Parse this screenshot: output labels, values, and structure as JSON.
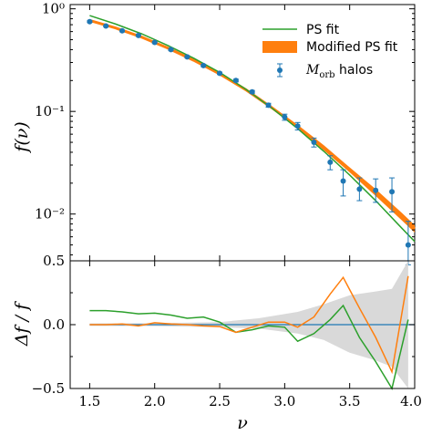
{
  "chart_data": [
    {
      "type": "line",
      "panel": "top",
      "y_scale": "log",
      "xlim": [
        1.35,
        4.0
      ],
      "ylim": [
        0.0035,
        1.1
      ],
      "ylabel": "f(ν)",
      "y_ticks": [
        1,
        0.1,
        0.01
      ],
      "y_tick_labels": [
        "10⁰",
        "10⁻¹",
        "10⁻²"
      ],
      "legend_position": "top-right",
      "legend": {
        "ps": "PS fit",
        "mod": "Modified PS fit",
        "halos_main": "M",
        "halos_sub": "orb",
        "halos_tail": " halos"
      },
      "colors": {
        "ps": "#2ca02c",
        "mod": "#ff7f0e",
        "halos": "#1f77b4"
      },
      "series": [
        {
          "name": "PS fit",
          "x": [
            1.5,
            1.7,
            1.9,
            2.1,
            2.3,
            2.5,
            2.7,
            2.9,
            3.1,
            3.3,
            3.5,
            3.7,
            3.9,
            4.0
          ],
          "values": [
            0.86,
            0.71,
            0.57,
            0.44,
            0.33,
            0.24,
            0.165,
            0.108,
            0.068,
            0.041,
            0.024,
            0.0135,
            0.0073,
            0.0054
          ]
        },
        {
          "name": "Modified PS fit",
          "x": [
            1.5,
            1.7,
            1.9,
            2.1,
            2.3,
            2.5,
            2.7,
            2.9,
            3.1,
            3.3,
            3.5,
            3.7,
            3.9,
            4.0
          ],
          "values": [
            0.77,
            0.65,
            0.53,
            0.415,
            0.315,
            0.232,
            0.163,
            0.109,
            0.071,
            0.044,
            0.027,
            0.0163,
            0.0095,
            0.0072
          ],
          "band_low": [
            0.76,
            0.64,
            0.52,
            0.41,
            0.31,
            0.228,
            0.16,
            0.106,
            0.068,
            0.042,
            0.0255,
            0.015,
            0.0087,
            0.0066
          ],
          "band_high": [
            0.78,
            0.66,
            0.54,
            0.42,
            0.32,
            0.236,
            0.167,
            0.112,
            0.074,
            0.047,
            0.0285,
            0.0175,
            0.0103,
            0.0078
          ]
        },
        {
          "name": "M_orb halos",
          "x": [
            1.5,
            1.625,
            1.75,
            1.875,
            2.0,
            2.125,
            2.25,
            2.375,
            2.5,
            2.625,
            2.75,
            2.875,
            3.0,
            3.1,
            3.225,
            3.35,
            3.45,
            3.575,
            3.7,
            3.825,
            3.95
          ],
          "values": [
            0.75,
            0.68,
            0.61,
            0.55,
            0.47,
            0.4,
            0.34,
            0.28,
            0.235,
            0.2,
            0.155,
            0.115,
            0.088,
            0.072,
            0.05,
            0.032,
            0.021,
            0.0175,
            0.017,
            0.0165,
            0.005
          ],
          "err_low": [
            0.015,
            0.013,
            0.012,
            0.011,
            0.01,
            0.009,
            0.008,
            0.007,
            0.006,
            0.006,
            0.005,
            0.005,
            0.006,
            0.006,
            0.005,
            0.005,
            0.006,
            0.004,
            0.004,
            0.006,
            0.0018
          ],
          "err_high": [
            0.015,
            0.013,
            0.012,
            0.011,
            0.01,
            0.009,
            0.008,
            0.007,
            0.006,
            0.006,
            0.005,
            0.005,
            0.006,
            0.006,
            0.005,
            0.005,
            0.006,
            0.005,
            0.005,
            0.006,
            0.0035
          ]
        }
      ]
    },
    {
      "type": "line",
      "panel": "bottom",
      "xlim": [
        1.35,
        4.0
      ],
      "ylim": [
        -0.5,
        0.5
      ],
      "xlabel": "ν",
      "ylabel": "Δf / f",
      "x_ticks": [
        1.5,
        2.0,
        2.5,
        3.0,
        3.5,
        4.0
      ],
      "x_tick_labels": [
        "1.5",
        "2.0",
        "2.5",
        "3.0",
        "3.5",
        "4.0"
      ],
      "y_ticks": [
        0.5,
        0.0,
        -0.5
      ],
      "y_tick_labels": [
        "0.5",
        "0.0",
        "−0.5"
      ],
      "colors": {
        "zero": "#1f77b4",
        "ps": "#2ca02c",
        "mod": "#ff7f0e",
        "band": "#d9d9d9"
      },
      "band": {
        "x": [
          1.5,
          2.0,
          2.5,
          2.8,
          3.1,
          3.3,
          3.5,
          3.7,
          3.825,
          3.95
        ],
        "low": [
          -0.01,
          -0.012,
          -0.02,
          -0.03,
          -0.07,
          -0.12,
          -0.22,
          -0.28,
          -0.33,
          -0.5
        ],
        "high": [
          0.01,
          0.012,
          0.02,
          0.05,
          0.1,
          0.16,
          0.23,
          0.26,
          0.28,
          0.5
        ]
      },
      "series": [
        {
          "name": "PS fit",
          "x": [
            1.5,
            1.625,
            1.75,
            1.875,
            2.0,
            2.125,
            2.25,
            2.375,
            2.5,
            2.625,
            2.75,
            2.875,
            3.0,
            3.1,
            3.225,
            3.35,
            3.45,
            3.575,
            3.7,
            3.825,
            3.95
          ],
          "values": [
            0.11,
            0.11,
            0.1,
            0.085,
            0.09,
            0.075,
            0.05,
            0.06,
            0.02,
            -0.06,
            -0.04,
            -0.01,
            -0.02,
            -0.13,
            -0.07,
            0.04,
            0.15,
            -0.1,
            -0.29,
            -0.5,
            0.04
          ]
        },
        {
          "name": "Modified PS fit",
          "x": [
            1.5,
            1.625,
            1.75,
            1.875,
            2.0,
            2.125,
            2.25,
            2.375,
            2.5,
            2.625,
            2.75,
            2.875,
            3.0,
            3.1,
            3.225,
            3.35,
            3.45,
            3.575,
            3.7,
            3.825,
            3.95
          ],
          "values": [
            0.0,
            0.0,
            0.005,
            -0.01,
            0.015,
            0.005,
            0.0,
            -0.01,
            -0.015,
            -0.06,
            -0.02,
            0.02,
            0.02,
            -0.02,
            0.06,
            0.24,
            0.37,
            0.13,
            -0.1,
            -0.37,
            0.38
          ]
        }
      ]
    }
  ]
}
